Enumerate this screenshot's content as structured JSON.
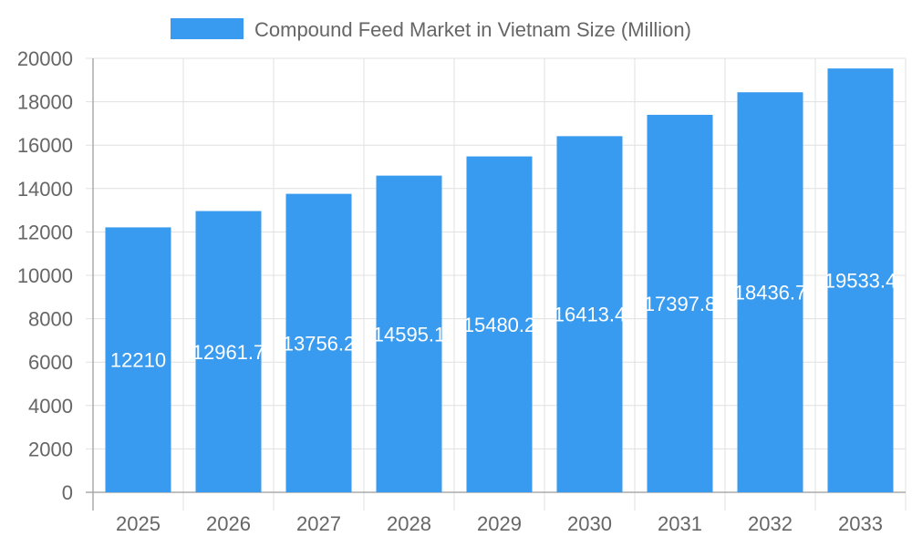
{
  "chart_data": {
    "type": "bar",
    "title": "",
    "xlabel": "",
    "ylabel": "",
    "ylim": [
      0,
      20000
    ],
    "yticks": [
      0,
      2000,
      4000,
      6000,
      8000,
      10000,
      12000,
      14000,
      16000,
      18000,
      20000
    ],
    "grid": true,
    "legend_position": "top",
    "categories": [
      "2025",
      "2026",
      "2027",
      "2028",
      "2029",
      "2030",
      "2031",
      "2032",
      "2033"
    ],
    "series": [
      {
        "name": "Compound Feed Market in Vietnam Size (Million)",
        "color": "#389BEF",
        "values": [
          12210,
          12961.7,
          13756.2,
          14595.1,
          15480.2,
          16413.4,
          17397.8,
          18436.7,
          19533.4
        ]
      }
    ]
  }
}
